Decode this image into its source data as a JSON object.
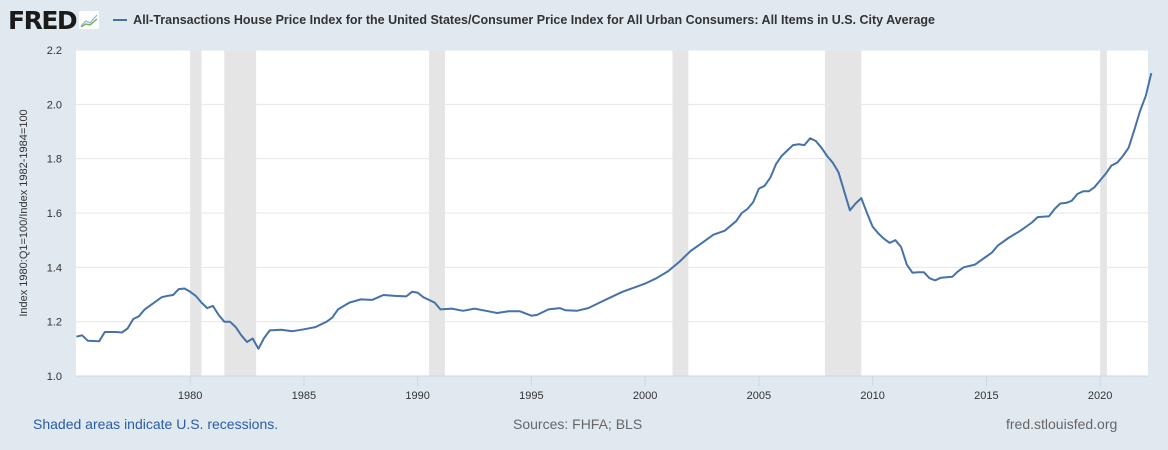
{
  "header": {
    "logo": "FRED",
    "title": "All-Transactions House Price Index for the United States/Consumer Price Index for All Urban Consumers: All Items in U.S. City Average"
  },
  "footer": {
    "recession_note": "Shaded areas indicate U.S. recessions.",
    "sources": "Sources: FHFA; BLS",
    "site": "fred.stlouisfed.org"
  },
  "colors": {
    "line": "#4572a7",
    "recession": "#e5e5e5",
    "background": "#e1e9f0"
  },
  "chart_data": {
    "type": "line",
    "title": "All-Transactions House Price Index for the United States/Consumer Price Index for All Urban Consumers: All Items in U.S. City Average",
    "xlabel": "",
    "ylabel": "Index 1980:Q1=100/Index 1982-1984=100",
    "xlim": [
      1975,
      2022.25
    ],
    "ylim": [
      1.0,
      2.2
    ],
    "yticks": [
      "1.0",
      "1.2",
      "1.4",
      "1.6",
      "1.8",
      "2.0",
      "2.2"
    ],
    "xticks": [
      "1980",
      "1985",
      "1990",
      "1995",
      "2000",
      "2005",
      "2010",
      "2015",
      "2020"
    ],
    "grid": true,
    "recessions": [
      [
        1980.0,
        1980.5
      ],
      [
        1981.5,
        1982.9
      ],
      [
        1990.5,
        1991.2
      ],
      [
        2001.2,
        2001.9
      ],
      [
        2007.9,
        2009.5
      ],
      [
        2020.0,
        2020.3
      ]
    ],
    "series": [
      {
        "name": "All-Transactions House Price Index / CPI",
        "x": [
          1975,
          1975.25,
          1975.5,
          1976,
          1976.25,
          1976.75,
          1977,
          1977.25,
          1977.5,
          1977.75,
          1978,
          1978.5,
          1978.75,
          1979,
          1979.25,
          1979.5,
          1979.75,
          1980,
          1980.25,
          1980.5,
          1980.75,
          1981,
          1981.25,
          1981.5,
          1981.75,
          1982,
          1982.25,
          1982.5,
          1982.75,
          1983,
          1983.25,
          1983.5,
          1984,
          1984.5,
          1985,
          1985.5,
          1986,
          1986.25,
          1986.5,
          1987,
          1987.5,
          1988,
          1988.5,
          1989,
          1989.5,
          1989.75,
          1990,
          1990.25,
          1990.75,
          1991,
          1991.5,
          1992,
          1992.5,
          1993,
          1993.5,
          1994,
          1994.5,
          1995,
          1995.25,
          1995.75,
          1996.25,
          1996.5,
          1997,
          1997.5,
          1998,
          1998.5,
          1999,
          1999.5,
          2000,
          2000.5,
          2001,
          2001.5,
          2002,
          2002.5,
          2003,
          2003.5,
          2004,
          2004.25,
          2004.5,
          2004.75,
          2005,
          2005.25,
          2005.5,
          2005.75,
          2006,
          2006.25,
          2006.5,
          2006.75,
          2007,
          2007.25,
          2007.5,
          2007.75,
          2008,
          2008.25,
          2008.5,
          2008.75,
          2009,
          2009.25,
          2009.5,
          2009.75,
          2010,
          2010.25,
          2010.5,
          2010.75,
          2011,
          2011.25,
          2011.5,
          2011.75,
          2012,
          2012.25,
          2012.5,
          2012.75,
          2013,
          2013.5,
          2013.75,
          2014,
          2014.5,
          2015,
          2015.25,
          2015.5,
          2016,
          2016.5,
          2017,
          2017.25,
          2017.75,
          2018,
          2018.25,
          2018.5,
          2018.75,
          2019,
          2019.25,
          2019.5,
          2019.75,
          2020,
          2020.25,
          2020.5,
          2020.75,
          2021,
          2021.25,
          2021.5,
          2021.75,
          2022,
          2022.25
        ],
        "values": [
          1.145,
          1.15,
          1.13,
          1.128,
          1.162,
          1.162,
          1.16,
          1.175,
          1.21,
          1.22,
          1.245,
          1.275,
          1.29,
          1.295,
          1.298,
          1.32,
          1.322,
          1.31,
          1.295,
          1.27,
          1.25,
          1.258,
          1.225,
          1.2,
          1.2,
          1.18,
          1.15,
          1.125,
          1.138,
          1.1,
          1.14,
          1.168,
          1.17,
          1.165,
          1.172,
          1.18,
          1.2,
          1.215,
          1.245,
          1.27,
          1.282,
          1.28,
          1.298,
          1.295,
          1.293,
          1.31,
          1.307,
          1.29,
          1.27,
          1.245,
          1.248,
          1.24,
          1.248,
          1.24,
          1.232,
          1.238,
          1.238,
          1.222,
          1.225,
          1.245,
          1.25,
          1.242,
          1.24,
          1.25,
          1.27,
          1.29,
          1.31,
          1.325,
          1.34,
          1.36,
          1.385,
          1.42,
          1.46,
          1.49,
          1.52,
          1.535,
          1.57,
          1.6,
          1.615,
          1.64,
          1.69,
          1.7,
          1.73,
          1.78,
          1.81,
          1.83,
          1.85,
          1.853,
          1.85,
          1.875,
          1.865,
          1.84,
          1.81,
          1.785,
          1.75,
          1.68,
          1.61,
          1.635,
          1.655,
          1.6,
          1.55,
          1.525,
          1.505,
          1.49,
          1.5,
          1.475,
          1.41,
          1.38,
          1.382,
          1.382,
          1.36,
          1.352,
          1.362,
          1.365,
          1.385,
          1.4,
          1.41,
          1.44,
          1.455,
          1.48,
          1.51,
          1.535,
          1.565,
          1.585,
          1.588,
          1.615,
          1.635,
          1.637,
          1.645,
          1.67,
          1.68,
          1.68,
          1.695,
          1.72,
          1.745,
          1.775,
          1.785,
          1.81,
          1.84,
          1.905,
          1.975,
          2.03,
          2.115
        ]
      }
    ]
  }
}
